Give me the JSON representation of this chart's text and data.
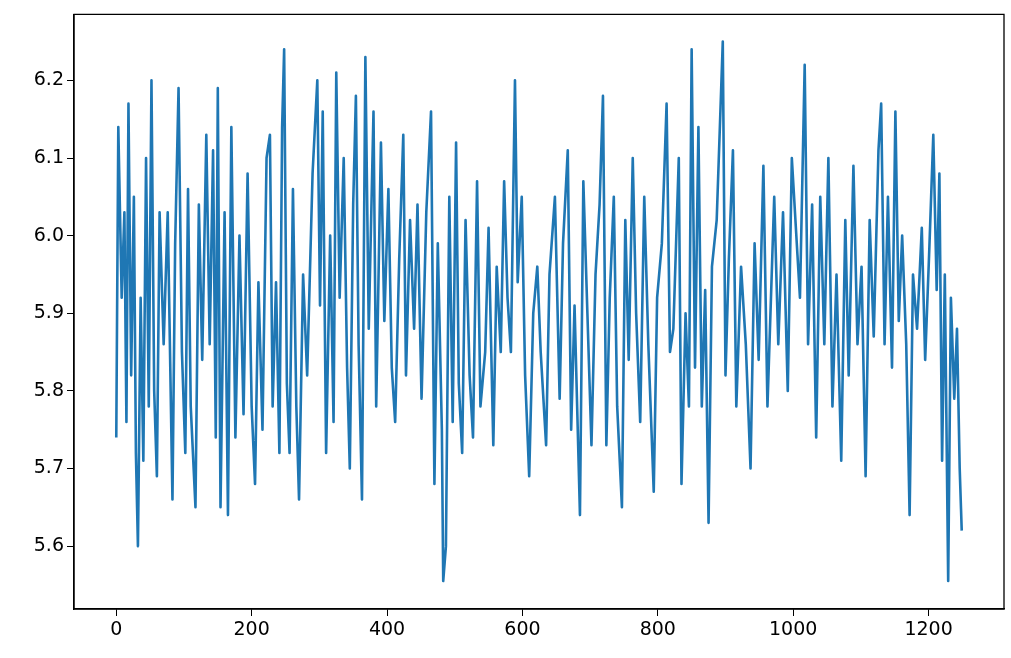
{
  "chart_data": {
    "type": "line",
    "color": "#1f77b4",
    "marker": "none",
    "xlim": [
      -62.45,
      1311.45
    ],
    "ylim": [
      5.519,
      6.285
    ],
    "xticks": [
      0,
      200,
      400,
      600,
      800,
      1000,
      1200
    ],
    "yticks": [
      5.6,
      5.7,
      5.8,
      5.9,
      {
        "value": 6.0,
        "label": "6.0"
      },
      6.1,
      6.2
    ],
    "x": [
      0,
      3,
      8,
      12,
      15,
      18,
      22,
      26,
      29,
      32,
      36,
      40,
      44,
      48,
      52,
      56,
      60,
      64,
      70,
      76,
      83,
      87,
      92,
      97,
      102,
      106,
      110,
      117,
      122,
      127,
      133,
      138,
      143,
      147,
      150,
      154,
      160,
      165,
      170,
      176,
      182,
      188,
      194,
      200,
      205,
      210,
      216,
      222,
      227,
      231,
      236,
      241,
      245,
      248,
      252,
      256,
      261,
      266,
      270,
      276,
      282,
      290,
      297,
      301,
      305,
      310,
      316,
      321,
      325,
      330,
      336,
      341,
      345,
      350,
      354,
      358,
      363,
      368,
      373,
      380,
      384,
      391,
      396,
      402,
      407,
      412,
      418,
      424,
      428,
      434,
      440,
      445,
      451,
      458,
      465,
      470,
      475,
      481,
      483,
      487,
      492,
      497,
      502,
      506,
      511,
      516,
      522,
      527,
      533,
      538,
      545,
      550,
      557,
      562,
      568,
      573,
      578,
      583,
      589,
      593,
      599,
      604,
      610,
      616,
      622,
      627,
      635,
      640,
      648,
      655,
      660,
      667,
      672,
      677,
      685,
      690,
      696,
      702,
      708,
      714,
      719,
      724,
      729,
      735,
      740,
      747,
      752,
      757,
      763,
      768,
      774,
      780,
      786,
      794,
      799,
      806,
      813,
      818,
      823,
      831,
      835,
      841,
      846,
      850,
      855,
      860,
      865,
      870,
      875,
      880,
      887,
      896,
      900,
      905,
      911,
      916,
      923,
      930,
      937,
      943,
      949,
      956,
      962,
      972,
      978,
      985,
      992,
      998,
      1010,
      1017,
      1022,
      1028,
      1034,
      1040,
      1046,
      1052,
      1058,
      1064,
      1071,
      1077,
      1082,
      1089,
      1095,
      1101,
      1107,
      1113,
      1119,
      1126,
      1130,
      1135,
      1140,
      1146,
      1151,
      1156,
      1161,
      1167,
      1172,
      1177,
      1183,
      1190,
      1195,
      1201,
      1207,
      1212,
      1216,
      1220,
      1224,
      1229,
      1233,
      1238,
      1242,
      1246,
      1249
    ],
    "values": [
      5.74,
      6.14,
      5.92,
      6.03,
      5.76,
      6.17,
      5.82,
      6.05,
      5.72,
      5.6,
      5.92,
      5.71,
      6.1,
      5.78,
      6.2,
      5.8,
      5.69,
      6.03,
      5.86,
      6.03,
      5.66,
      5.99,
      6.19,
      5.85,
      5.72,
      6.06,
      5.78,
      5.65,
      6.04,
      5.84,
      6.13,
      5.86,
      6.11,
      5.74,
      6.19,
      5.65,
      6.03,
      5.64,
      6.14,
      5.74,
      6.0,
      5.77,
      6.08,
      5.78,
      5.68,
      5.94,
      5.75,
      6.1,
      6.13,
      5.78,
      5.94,
      5.72,
      6.14,
      6.24,
      5.81,
      5.72,
      6.06,
      5.78,
      5.66,
      5.95,
      5.82,
      6.08,
      6.2,
      5.91,
      6.16,
      5.72,
      6.0,
      5.76,
      6.21,
      5.92,
      6.1,
      5.83,
      5.7,
      6.04,
      6.18,
      5.86,
      5.66,
      6.23,
      5.88,
      6.16,
      5.78,
      6.12,
      5.89,
      6.06,
      5.83,
      5.76,
      5.97,
      6.13,
      5.82,
      6.02,
      5.88,
      6.04,
      5.79,
      6.03,
      6.16,
      5.68,
      5.99,
      5.75,
      5.555,
      5.6,
      6.05,
      5.76,
      6.12,
      5.81,
      5.72,
      6.02,
      5.82,
      5.74,
      6.07,
      5.78,
      5.85,
      6.01,
      5.73,
      5.96,
      5.85,
      6.07,
      5.92,
      5.85,
      6.2,
      5.94,
      6.05,
      5.82,
      5.69,
      5.9,
      5.96,
      5.85,
      5.73,
      5.95,
      6.05,
      5.79,
      5.99,
      6.11,
      5.75,
      5.91,
      5.64,
      6.07,
      5.9,
      5.73,
      5.95,
      6.04,
      6.18,
      5.73,
      5.92,
      6.05,
      5.78,
      5.65,
      6.02,
      5.84,
      6.1,
      5.9,
      5.76,
      6.05,
      5.86,
      5.67,
      5.92,
      5.99,
      6.17,
      5.85,
      5.88,
      6.1,
      5.68,
      5.9,
      5.78,
      6.24,
      5.83,
      6.14,
      5.78,
      5.93,
      5.63,
      5.96,
      6.02,
      6.25,
      5.82,
      5.97,
      6.11,
      5.78,
      5.96,
      5.86,
      5.7,
      5.99,
      5.84,
      6.09,
      5.78,
      6.05,
      5.86,
      6.03,
      5.8,
      6.1,
      5.92,
      6.22,
      5.86,
      6.04,
      5.74,
      6.05,
      5.86,
      6.1,
      5.78,
      5.95,
      5.71,
      6.02,
      5.82,
      6.09,
      5.86,
      5.96,
      5.69,
      6.02,
      5.87,
      6.11,
      6.17,
      5.86,
      6.05,
      5.83,
      6.16,
      5.89,
      6.0,
      5.86,
      5.64,
      5.95,
      5.88,
      6.01,
      5.84,
      5.98,
      6.13,
      5.93,
      6.08,
      5.71,
      5.95,
      5.555,
      5.92,
      5.79,
      5.88,
      5.7,
      5.62
    ]
  }
}
